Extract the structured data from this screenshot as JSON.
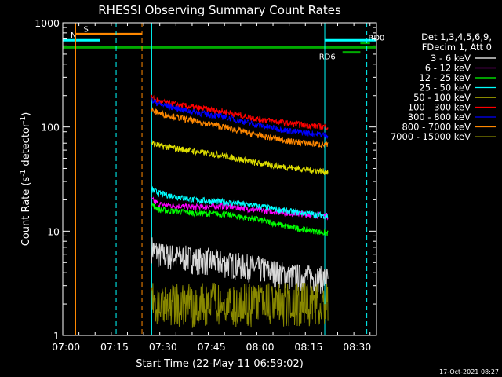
{
  "chart_data": {
    "type": "line",
    "title": "RHESSI Observing Summary Count Rates",
    "xlabel": "Start Time (22-May-11 06:59:02)",
    "ylabel_parts": [
      "Count Rate (s",
      "-1",
      " detector",
      "-1",
      ")"
    ],
    "yscale": "log",
    "xlim": [
      0,
      97
    ],
    "ylim": [
      1,
      1000
    ],
    "x_ticks": [
      {
        "t": 1,
        "label": "07:00"
      },
      {
        "t": 16,
        "label": "07:15"
      },
      {
        "t": 31,
        "label": "07:30"
      },
      {
        "t": 46,
        "label": "07:45"
      },
      {
        "t": 61,
        "label": "08:00"
      },
      {
        "t": 76,
        "label": "08:15"
      },
      {
        "t": 91,
        "label": "08:30"
      }
    ],
    "y_ticks": [
      {
        "v": 1,
        "label": "1"
      },
      {
        "v": 10,
        "label": "10"
      },
      {
        "v": 100,
        "label": "100"
      },
      {
        "v": 1000,
        "label": "1000"
      }
    ],
    "legend_header": [
      "Det 1,3,4,5,6,9,",
      "FDecim 1, Att 0"
    ],
    "legend_position": "right",
    "data_start": 27.5,
    "data_end": 82,
    "series": [
      {
        "name": "3 - 6 keV",
        "color": "#000000",
        "x": [
          27.5,
          30,
          40,
          50,
          60,
          70,
          82
        ],
        "y": [
          7,
          6,
          5.5,
          5,
          4.5,
          3.8,
          3.5
        ]
      },
      {
        "name": "6 - 12 keV",
        "color": "#ff00ff",
        "x": [
          27.5,
          30,
          40,
          50,
          60,
          70,
          82
        ],
        "y": [
          20,
          18,
          17,
          17.5,
          16,
          15,
          14
        ]
      },
      {
        "name": "12 - 25 keV",
        "color": "#00ff00",
        "x": [
          27.5,
          30,
          40,
          50,
          60,
          70,
          82
        ],
        "y": [
          18,
          16,
          15,
          14.5,
          13,
          11,
          9.5
        ]
      },
      {
        "name": "25 - 50 keV",
        "color": "#00ffff",
        "x": [
          27.5,
          30,
          40,
          50,
          60,
          70,
          82
        ],
        "y": [
          25,
          23,
          20,
          19,
          17.5,
          15.5,
          14
        ]
      },
      {
        "name": "50 - 100 keV",
        "color": "#dddd00",
        "x": [
          27.5,
          30,
          40,
          50,
          60,
          70,
          82
        ],
        "y": [
          70,
          66,
          59,
          53,
          45,
          41,
          37
        ]
      },
      {
        "name": "100 - 300 keV",
        "color": "#ff0000",
        "x": [
          27.5,
          30,
          40,
          50,
          60,
          70,
          82
        ],
        "y": [
          190,
          175,
          155,
          140,
          120,
          108,
          100
        ]
      },
      {
        "name": "300 - 800 keV",
        "color": "#0000ff",
        "x": [
          27.5,
          30,
          40,
          50,
          60,
          70,
          82
        ],
        "y": [
          180,
          165,
          140,
          125,
          105,
          92,
          83
        ]
      },
      {
        "name": "800 - 7000 keV",
        "color": "#ff8800",
        "x": [
          27.5,
          30,
          40,
          50,
          60,
          70,
          82
        ],
        "y": [
          145,
          135,
          115,
          100,
          84,
          73,
          67
        ]
      },
      {
        "name": "7000 - 15000 keV",
        "color": "#888800",
        "x": [
          27.5,
          30,
          40,
          50,
          60,
          70,
          82
        ],
        "y": [
          2,
          2,
          2,
          2,
          2,
          2,
          2
        ]
      }
    ],
    "flag_bars": [
      {
        "label": "S",
        "color": "#ff8800",
        "x0": 4,
        "x1": 24.5,
        "y": 780
      },
      {
        "label": "N",
        "color": "#00ffff",
        "x0": 0,
        "x1": 11.5,
        "y": 680
      },
      {
        "label": "",
        "color": "#00ffff",
        "x0": 81,
        "x1": 97,
        "y": 680
      },
      {
        "label": "",
        "color": "#00aa00",
        "x0": 0,
        "x1": 97,
        "y": 580
      },
      {
        "label": "RD6",
        "color": "#00aa00",
        "x0": 86.5,
        "x1": 92,
        "y": 520
      },
      {
        "label": "RD0",
        "color": "#00aa00",
        "x0": 92,
        "x1": 95,
        "y": 640
      }
    ],
    "vlines": [
      {
        "t": 4,
        "color": "#ff8800",
        "dash": false
      },
      {
        "t": 16.5,
        "color": "#00ffff",
        "dash": true
      },
      {
        "t": 24.5,
        "color": "#ff8800",
        "dash": true
      },
      {
        "t": 27.5,
        "color": "#00ffff",
        "dash": false
      },
      {
        "t": 81,
        "color": "#00ffff",
        "dash": false
      },
      {
        "t": 94,
        "color": "#00ffff",
        "dash": true
      }
    ]
  },
  "timestamp": "17-Oct-2021 08:27"
}
